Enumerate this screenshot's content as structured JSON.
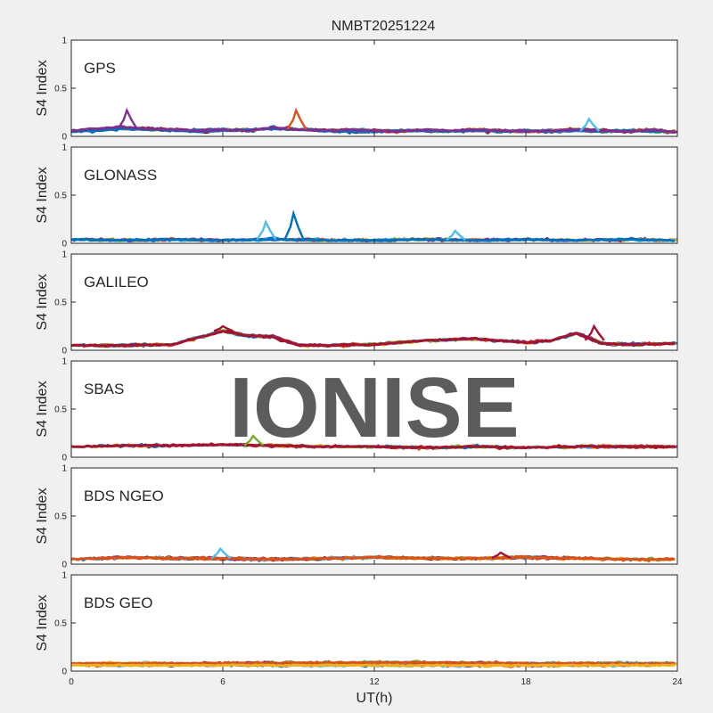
{
  "figure_title": "NMBT20251224",
  "watermark": "IONISE",
  "colors": {
    "background": "#f0f0f0",
    "axes_bg": "#ffffff",
    "watermark": "#d9d9d9",
    "series": [
      "#0072bd",
      "#d95319",
      "#edb120",
      "#7e2f8e",
      "#77ac30",
      "#4dbeee",
      "#a2142f"
    ]
  },
  "chart_data": [
    {
      "type": "scatter",
      "panel_label": "GPS",
      "ylabel": "S4 Index",
      "xlabel": "",
      "xlim": [
        0,
        24
      ],
      "ylim": [
        0,
        1
      ],
      "xticks": [
        0,
        6,
        12,
        18,
        24
      ],
      "yticks": [
        "0",
        "0.5",
        "1"
      ],
      "show_xticklabels": false,
      "series_summary": [
        {
          "color": "#0072bd",
          "x": [
            0,
            1,
            2,
            3,
            4,
            5,
            6,
            7,
            8,
            9,
            10,
            11,
            12,
            13,
            14,
            15,
            16,
            17,
            18,
            19,
            20,
            21,
            22,
            23,
            24
          ],
          "y": [
            0.05,
            0.06,
            0.08,
            0.07,
            0.06,
            0.05,
            0.06,
            0.07,
            0.08,
            0.07,
            0.06,
            0.05,
            0.05,
            0.06,
            0.06,
            0.05,
            0.06,
            0.05,
            0.06,
            0.05,
            0.06,
            0.05,
            0.06,
            0.05,
            0.05
          ]
        },
        {
          "color": "#7e2f8e",
          "x": [
            0,
            1,
            2,
            3,
            4,
            5,
            6,
            7,
            8,
            9,
            10,
            11,
            12,
            13,
            14,
            15,
            16,
            17,
            18,
            19,
            20,
            21,
            22,
            23,
            24
          ],
          "y": [
            0.06,
            0.08,
            0.1,
            0.08,
            0.07,
            0.06,
            0.07,
            0.06,
            0.09,
            0.07,
            0.06,
            0.07,
            0.06,
            0.05,
            0.07,
            0.06,
            0.07,
            0.06,
            0.05,
            0.06,
            0.07,
            0.06,
            0.05,
            0.07,
            0.04
          ]
        }
      ],
      "peaks": [
        {
          "x": 2.2,
          "y": 0.27,
          "color": "#7e2f8e"
        },
        {
          "x": 8.9,
          "y": 0.27,
          "color": "#d95319"
        },
        {
          "x": 20.5,
          "y": 0.18,
          "color": "#4dbeee"
        }
      ]
    },
    {
      "type": "scatter",
      "panel_label": "GLONASS",
      "ylabel": "S4 Index",
      "xlabel": "",
      "xlim": [
        0,
        24
      ],
      "ylim": [
        0,
        1
      ],
      "xticks": [
        0,
        6,
        12,
        18,
        24
      ],
      "yticks": [
        "0",
        "0.5",
        "1"
      ],
      "show_xticklabels": false,
      "series_summary": [
        {
          "color": "#0072bd",
          "x": [
            0,
            2,
            4,
            6,
            8,
            10,
            12,
            14,
            16,
            18,
            20,
            22,
            24
          ],
          "y": [
            0.04,
            0.03,
            0.04,
            0.03,
            0.04,
            0.03,
            0.03,
            0.04,
            0.03,
            0.04,
            0.03,
            0.04,
            0.03
          ]
        }
      ],
      "peaks": [
        {
          "x": 7.7,
          "y": 0.22,
          "color": "#4dbeee"
        },
        {
          "x": 8.8,
          "y": 0.31,
          "color": "#0072bd"
        },
        {
          "x": 15.2,
          "y": 0.13,
          "color": "#4dbeee"
        }
      ]
    },
    {
      "type": "scatter",
      "panel_label": "GALILEO",
      "ylabel": "S4 Index",
      "xlabel": "",
      "xlim": [
        0,
        24
      ],
      "ylim": [
        0,
        1
      ],
      "xticks": [
        0,
        6,
        12,
        18,
        24
      ],
      "yticks": [
        "0",
        "0.5",
        "1"
      ],
      "show_xticklabels": false,
      "series_summary": [
        {
          "color": "#a2142f",
          "x": [
            0,
            2,
            4,
            6,
            7,
            8,
            9,
            10,
            12,
            14,
            16,
            17,
            18,
            19,
            20,
            21,
            22,
            24
          ],
          "y": [
            0.05,
            0.05,
            0.06,
            0.2,
            0.15,
            0.14,
            0.05,
            0.05,
            0.06,
            0.1,
            0.12,
            0.1,
            0.08,
            0.1,
            0.18,
            0.07,
            0.06,
            0.07
          ]
        }
      ],
      "peaks": [
        {
          "x": 6.0,
          "y": 0.25,
          "color": "#a2142f"
        },
        {
          "x": 20.7,
          "y": 0.25,
          "color": "#a2142f"
        }
      ]
    },
    {
      "type": "scatter",
      "panel_label": "SBAS",
      "ylabel": "S4 Index",
      "xlabel": "",
      "xlim": [
        0,
        24
      ],
      "ylim": [
        0,
        1
      ],
      "xticks": [
        0,
        6,
        12,
        18,
        24
      ],
      "yticks": [
        "0",
        "0.5",
        "1"
      ],
      "show_xticklabels": false,
      "series_summary": [
        {
          "color": "#a2142f",
          "x": [
            0,
            2,
            4,
            6,
            8,
            10,
            12,
            14,
            16,
            18,
            20,
            22,
            24
          ],
          "y": [
            0.11,
            0.12,
            0.12,
            0.13,
            0.12,
            0.11,
            0.11,
            0.1,
            0.11,
            0.1,
            0.11,
            0.11,
            0.11
          ]
        }
      ],
      "peaks": [
        {
          "x": 7.2,
          "y": 0.22,
          "color": "#77ac30"
        }
      ]
    },
    {
      "type": "scatter",
      "panel_label": "BDS NGEO",
      "ylabel": "S4 Index",
      "xlabel": "",
      "xlim": [
        0,
        24
      ],
      "ylim": [
        0,
        1
      ],
      "xticks": [
        0,
        6,
        12,
        18,
        24
      ],
      "yticks": [
        "0",
        "0.5",
        "1"
      ],
      "show_xticklabels": false,
      "series_summary": [
        {
          "color": "#d95319",
          "x": [
            0,
            2,
            4,
            6,
            8,
            10,
            12,
            14,
            16,
            18,
            20,
            22,
            24
          ],
          "y": [
            0.05,
            0.07,
            0.06,
            0.06,
            0.05,
            0.06,
            0.07,
            0.06,
            0.06,
            0.07,
            0.06,
            0.05,
            0.05
          ]
        }
      ],
      "peaks": [
        {
          "x": 5.9,
          "y": 0.16,
          "color": "#4dbeee"
        },
        {
          "x": 17.0,
          "y": 0.12,
          "color": "#a2142f"
        }
      ]
    },
    {
      "type": "scatter",
      "panel_label": "BDS GEO",
      "ylabel": "S4 Index",
      "xlabel": "UT(h)",
      "xlim": [
        0,
        24
      ],
      "ylim": [
        0,
        1
      ],
      "xticks": [
        0,
        6,
        12,
        18,
        24
      ],
      "xticklabels": [
        "0",
        "6",
        "12",
        "18",
        "24"
      ],
      "yticks": [
        "0",
        "0.5",
        "1"
      ],
      "show_xticklabels": true,
      "series_summary": [
        {
          "color": "#d95319",
          "x": [
            0,
            6,
            12,
            18,
            24
          ],
          "y": [
            0.08,
            0.08,
            0.09,
            0.08,
            0.08
          ]
        },
        {
          "color": "#edb120",
          "x": [
            0,
            6,
            12,
            18,
            24
          ],
          "y": [
            0.06,
            0.06,
            0.06,
            0.06,
            0.06
          ]
        }
      ],
      "peaks": []
    }
  ]
}
